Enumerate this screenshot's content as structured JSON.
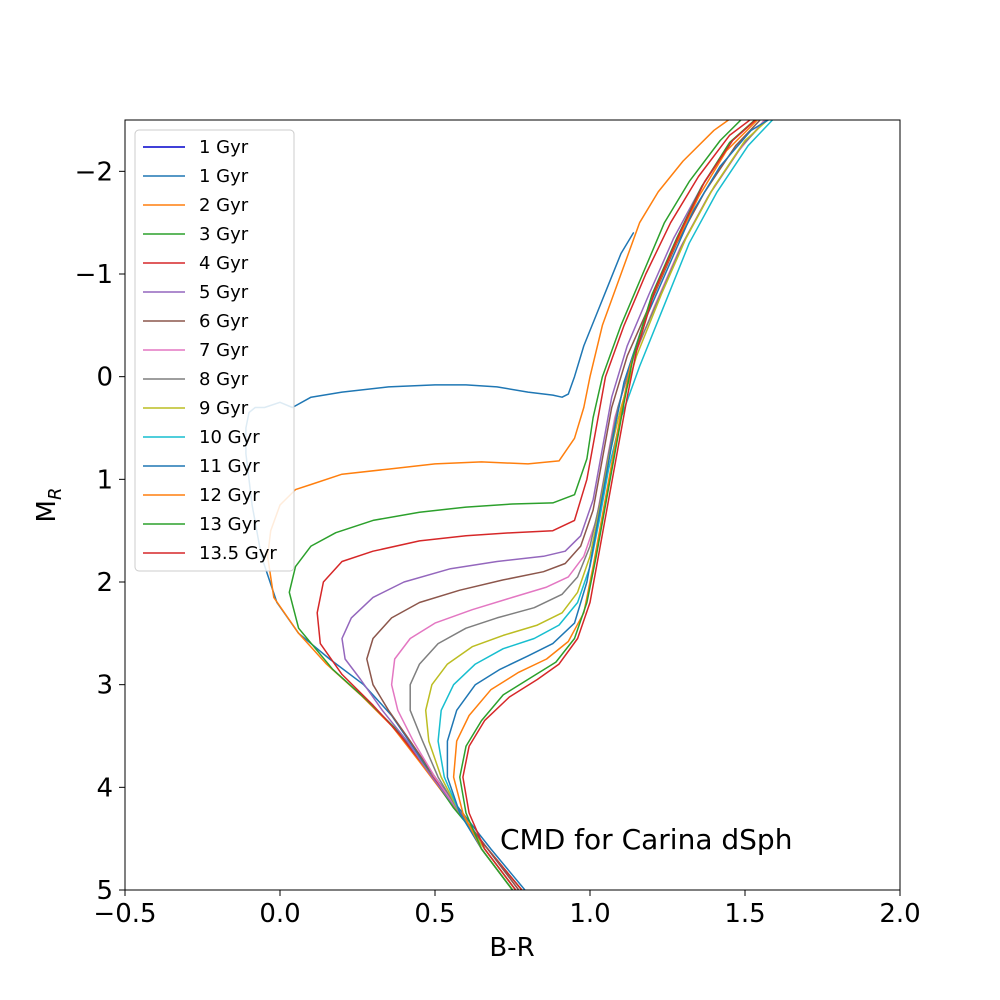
{
  "chart_data": {
    "type": "line",
    "xlabel": "B-R",
    "ylabel": "M",
    "ylabel_sub": "R",
    "xlim": [
      -0.5,
      2.0
    ],
    "ylim": [
      5,
      -2.5
    ],
    "y_inverted": true,
    "xticks": [
      -0.5,
      0.0,
      0.5,
      1.0,
      1.5,
      2.0
    ],
    "xtick_labels": [
      "−0.5",
      "0.0",
      "0.5",
      "1.0",
      "1.5",
      "2.0"
    ],
    "yticks": [
      -2,
      -1,
      0,
      1,
      2,
      3,
      4,
      5
    ],
    "ytick_labels": [
      "−2",
      "−1",
      "0",
      "1",
      "2",
      "3",
      "4",
      "5"
    ],
    "grid": false,
    "legend_position": "upper-left",
    "annotation": "CMD for Carina dSph",
    "series": [
      {
        "name": "1 Gyr",
        "color": "#0000cc",
        "x": [],
        "y": []
      },
      {
        "name": "1 Gyr",
        "color": "#1f77b4",
        "x": [
          0.79,
          0.68,
          0.55,
          0.45,
          0.36,
          0.27,
          0.16,
          0.06,
          -0.01,
          -0.06,
          -0.09,
          -0.11,
          -0.11,
          -0.1,
          -0.08,
          -0.05,
          0.0,
          0.04,
          0.1,
          0.2,
          0.35,
          0.5,
          0.6,
          0.7,
          0.8,
          0.88,
          0.91,
          0.93,
          0.95,
          0.98,
          1.02,
          1.06,
          1.1,
          1.14
        ],
        "y": [
          5.0,
          4.6,
          4.1,
          3.7,
          3.3,
          3.0,
          2.75,
          2.5,
          2.2,
          1.75,
          1.25,
          0.75,
          0.5,
          0.35,
          0.3,
          0.3,
          0.25,
          0.3,
          0.2,
          0.15,
          0.1,
          0.08,
          0.08,
          0.1,
          0.15,
          0.18,
          0.2,
          0.17,
          0.0,
          -0.3,
          -0.6,
          -0.9,
          -1.2,
          -1.4
        ]
      },
      {
        "name": "2 Gyr",
        "color": "#ff7f0e",
        "x": [
          0.78,
          0.67,
          0.55,
          0.45,
          0.36,
          0.26,
          0.15,
          0.06,
          -0.02,
          -0.04,
          -0.03,
          0.0,
          0.05,
          0.1,
          0.2,
          0.35,
          0.5,
          0.65,
          0.8,
          0.9,
          0.95,
          0.98,
          1.0,
          1.04,
          1.1,
          1.16,
          1.22,
          1.3,
          1.4,
          1.47
        ],
        "y": [
          5.0,
          4.6,
          4.15,
          3.75,
          3.4,
          3.1,
          2.8,
          2.5,
          2.15,
          1.75,
          1.5,
          1.25,
          1.1,
          1.05,
          0.95,
          0.9,
          0.85,
          0.83,
          0.85,
          0.82,
          0.6,
          0.3,
          0.0,
          -0.5,
          -1.0,
          -1.5,
          -1.8,
          -2.1,
          -2.4,
          -2.55
        ]
      },
      {
        "name": "3 Gyr",
        "color": "#2ca02c",
        "x": [
          0.78,
          0.67,
          0.56,
          0.47,
          0.38,
          0.28,
          0.17,
          0.06,
          0.03,
          0.05,
          0.1,
          0.18,
          0.3,
          0.45,
          0.6,
          0.75,
          0.88,
          0.95,
          0.99,
          1.01,
          1.04,
          1.1,
          1.17,
          1.24,
          1.32,
          1.42,
          1.52
        ],
        "y": [
          5.0,
          4.6,
          4.2,
          3.8,
          3.45,
          3.15,
          2.85,
          2.45,
          2.1,
          1.85,
          1.65,
          1.52,
          1.4,
          1.32,
          1.27,
          1.24,
          1.23,
          1.15,
          0.8,
          0.4,
          0.0,
          -0.5,
          -1.0,
          -1.5,
          -1.9,
          -2.3,
          -2.6
        ]
      },
      {
        "name": "4 Gyr",
        "color": "#d62728",
        "x": [
          0.78,
          0.67,
          0.57,
          0.48,
          0.39,
          0.3,
          0.2,
          0.13,
          0.12,
          0.14,
          0.2,
          0.3,
          0.45,
          0.6,
          0.75,
          0.88,
          0.95,
          0.99,
          1.02,
          1.05,
          1.11,
          1.18,
          1.26,
          1.35,
          1.45,
          1.56
        ],
        "y": [
          5.0,
          4.6,
          4.2,
          3.85,
          3.5,
          3.2,
          2.9,
          2.6,
          2.3,
          2.0,
          1.8,
          1.7,
          1.6,
          1.55,
          1.52,
          1.5,
          1.4,
          1.0,
          0.5,
          0.0,
          -0.5,
          -1.0,
          -1.5,
          -1.95,
          -2.35,
          -2.6
        ]
      },
      {
        "name": "5 Gyr",
        "color": "#9467bd",
        "x": [
          0.77,
          0.67,
          0.58,
          0.49,
          0.41,
          0.33,
          0.26,
          0.21,
          0.2,
          0.23,
          0.3,
          0.4,
          0.55,
          0.7,
          0.85,
          0.92,
          0.97,
          1.01,
          1.04,
          1.07,
          1.12,
          1.19,
          1.27,
          1.36,
          1.46,
          1.57
        ],
        "y": [
          5.0,
          4.6,
          4.25,
          3.9,
          3.55,
          3.25,
          2.95,
          2.75,
          2.55,
          2.35,
          2.15,
          2.0,
          1.87,
          1.8,
          1.75,
          1.7,
          1.55,
          1.2,
          0.7,
          0.2,
          -0.3,
          -0.8,
          -1.35,
          -1.85,
          -2.3,
          -2.6
        ]
      },
      {
        "name": "6 Gyr",
        "color": "#8c564b",
        "x": [
          0.77,
          0.67,
          0.58,
          0.5,
          0.42,
          0.35,
          0.3,
          0.28,
          0.3,
          0.36,
          0.45,
          0.58,
          0.72,
          0.85,
          0.92,
          0.97,
          1.01,
          1.04,
          1.07,
          1.12,
          1.2,
          1.28,
          1.37,
          1.47,
          1.58
        ],
        "y": [
          5.0,
          4.6,
          4.25,
          3.9,
          3.55,
          3.25,
          3.0,
          2.75,
          2.55,
          2.35,
          2.2,
          2.08,
          1.98,
          1.9,
          1.82,
          1.65,
          1.3,
          0.8,
          0.3,
          -0.2,
          -0.75,
          -1.3,
          -1.8,
          -2.25,
          -2.6
        ]
      },
      {
        "name": "7 Gyr",
        "color": "#e377c2",
        "x": [
          0.76,
          0.66,
          0.58,
          0.5,
          0.43,
          0.38,
          0.36,
          0.37,
          0.42,
          0.5,
          0.62,
          0.75,
          0.86,
          0.93,
          0.98,
          1.02,
          1.05,
          1.08,
          1.13,
          1.21,
          1.29,
          1.38,
          1.48,
          1.59
        ],
        "y": [
          5.0,
          4.6,
          4.25,
          3.9,
          3.55,
          3.25,
          3.0,
          2.75,
          2.55,
          2.4,
          2.27,
          2.15,
          2.05,
          1.95,
          1.75,
          1.4,
          0.9,
          0.4,
          -0.1,
          -0.7,
          -1.25,
          -1.75,
          -2.2,
          -2.6
        ]
      },
      {
        "name": "8 Gyr",
        "color": "#7f7f7f",
        "x": [
          0.76,
          0.66,
          0.58,
          0.51,
          0.46,
          0.42,
          0.42,
          0.45,
          0.51,
          0.6,
          0.7,
          0.82,
          0.91,
          0.96,
          1.0,
          1.03,
          1.06,
          1.09,
          1.14,
          1.22,
          1.3,
          1.39,
          1.49,
          1.6
        ],
        "y": [
          5.0,
          4.6,
          4.25,
          3.9,
          3.55,
          3.25,
          3.0,
          2.8,
          2.6,
          2.45,
          2.35,
          2.25,
          2.12,
          1.95,
          1.65,
          1.25,
          0.75,
          0.3,
          -0.2,
          -0.75,
          -1.3,
          -1.8,
          -2.25,
          -2.6
        ]
      },
      {
        "name": "9 Gyr",
        "color": "#bcbd22",
        "x": [
          0.76,
          0.66,
          0.58,
          0.52,
          0.48,
          0.47,
          0.49,
          0.54,
          0.62,
          0.72,
          0.83,
          0.91,
          0.96,
          1.0,
          1.03,
          1.06,
          1.1,
          1.15,
          1.23,
          1.31,
          1.4,
          1.5,
          1.61
        ],
        "y": [
          5.0,
          4.6,
          4.25,
          3.9,
          3.55,
          3.25,
          3.0,
          2.8,
          2.63,
          2.52,
          2.42,
          2.3,
          2.1,
          1.75,
          1.3,
          0.8,
          0.3,
          -0.2,
          -0.8,
          -1.35,
          -1.85,
          -2.3,
          -2.6
        ]
      },
      {
        "name": "10 Gyr",
        "color": "#17becf",
        "x": [
          0.75,
          0.65,
          0.58,
          0.53,
          0.51,
          0.52,
          0.56,
          0.63,
          0.72,
          0.82,
          0.9,
          0.96,
          1.0,
          1.03,
          1.06,
          1.1,
          1.16,
          1.24,
          1.32,
          1.41,
          1.51,
          1.62
        ],
        "y": [
          5.0,
          4.6,
          4.25,
          3.9,
          3.55,
          3.25,
          3.0,
          2.8,
          2.65,
          2.55,
          2.42,
          2.2,
          1.85,
          1.4,
          0.9,
          0.4,
          -0.1,
          -0.7,
          -1.3,
          -1.8,
          -2.25,
          -2.6
        ]
      },
      {
        "name": "11 Gyr",
        "color": "#1f77b4",
        "x": [
          0.75,
          0.65,
          0.58,
          0.54,
          0.54,
          0.57,
          0.63,
          0.71,
          0.8,
          0.88,
          0.95,
          0.99,
          1.02,
          1.05,
          1.08,
          1.11,
          1.17,
          1.25,
          1.33,
          1.42,
          1.52,
          1.63
        ],
        "y": [
          5.0,
          4.6,
          4.25,
          3.9,
          3.55,
          3.25,
          3.0,
          2.85,
          2.72,
          2.6,
          2.4,
          2.0,
          1.5,
          1.0,
          0.5,
          0.05,
          -0.5,
          -1.05,
          -1.6,
          -2.05,
          -2.4,
          -2.6
        ]
      },
      {
        "name": "12 Gyr",
        "color": "#ff7f0e",
        "x": [
          0.75,
          0.65,
          0.59,
          0.56,
          0.57,
          0.61,
          0.68,
          0.77,
          0.86,
          0.93,
          0.98,
          1.01,
          1.04,
          1.07,
          1.1,
          1.13,
          1.19,
          1.27,
          1.35,
          1.44,
          1.54,
          1.64
        ],
        "y": [
          5.0,
          4.6,
          4.25,
          3.9,
          3.55,
          3.3,
          3.05,
          2.88,
          2.75,
          2.58,
          2.3,
          1.85,
          1.35,
          0.85,
          0.35,
          -0.1,
          -0.7,
          -1.25,
          -1.75,
          -2.2,
          -2.5,
          -2.65
        ]
      },
      {
        "name": "13 Gyr",
        "color": "#2ca02c",
        "x": [
          0.75,
          0.65,
          0.6,
          0.58,
          0.6,
          0.65,
          0.72,
          0.81,
          0.89,
          0.95,
          0.99,
          1.02,
          1.05,
          1.08,
          1.11,
          1.14,
          1.2,
          1.28,
          1.36,
          1.45,
          1.55,
          1.65
        ],
        "y": [
          5.0,
          4.6,
          4.25,
          3.9,
          3.6,
          3.35,
          3.1,
          2.93,
          2.78,
          2.55,
          2.2,
          1.75,
          1.25,
          0.75,
          0.25,
          -0.2,
          -0.8,
          -1.35,
          -1.85,
          -2.28,
          -2.55,
          -2.65
        ]
      },
      {
        "name": "13.5 Gyr",
        "color": "#d62728",
        "x": [
          0.76,
          0.66,
          0.61,
          0.59,
          0.61,
          0.66,
          0.74,
          0.83,
          0.9,
          0.96,
          1.0,
          1.03,
          1.06,
          1.09,
          1.12,
          1.15,
          1.21,
          1.29,
          1.37,
          1.46,
          1.56,
          1.66
        ],
        "y": [
          5.0,
          4.6,
          4.25,
          3.9,
          3.6,
          3.35,
          3.12,
          2.95,
          2.8,
          2.55,
          2.2,
          1.7,
          1.2,
          0.7,
          0.2,
          -0.25,
          -0.85,
          -1.4,
          -1.9,
          -2.3,
          -2.57,
          -2.65
        ]
      }
    ]
  }
}
